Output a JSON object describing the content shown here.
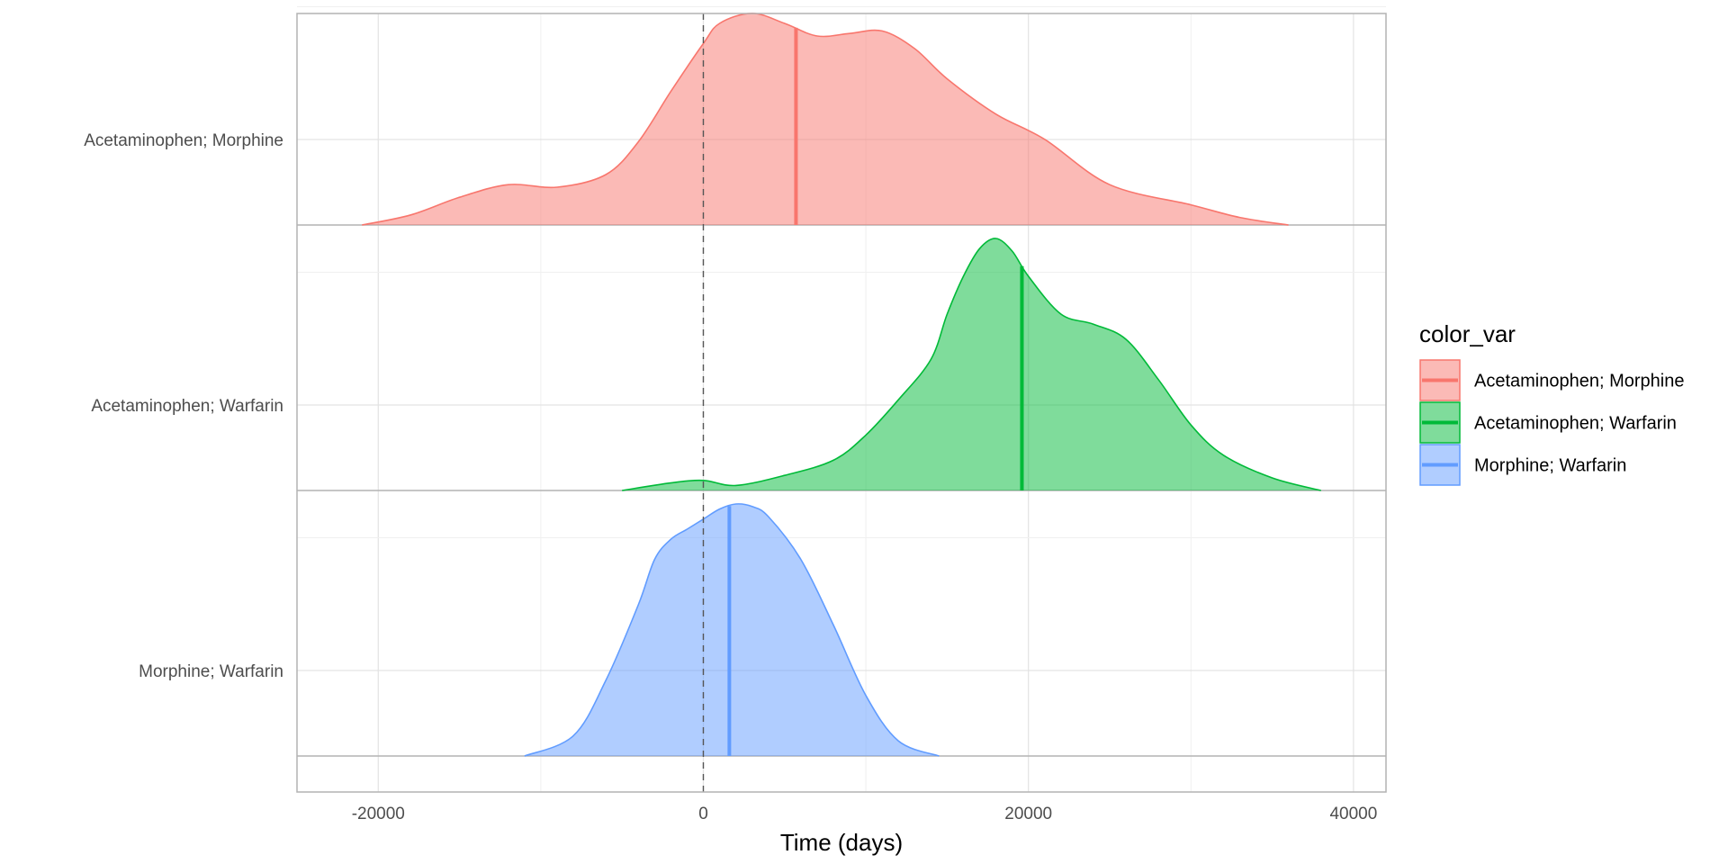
{
  "chart_data": {
    "type": "area",
    "xlabel": "Time (days)",
    "ylabel": "",
    "xlim": [
      -25000,
      42000
    ],
    "x_ticks": [
      -20000,
      0,
      20000,
      40000
    ],
    "x_tick_labels": [
      "-20000",
      "0",
      "20000",
      "40000"
    ],
    "reference_line_x": 0,
    "grid": true,
    "legend": {
      "title": "color_var",
      "position": "right"
    },
    "series": [
      {
        "name": "Acetaminophen; Morphine",
        "color": "#F8766D",
        "median": 5700,
        "density": {
          "x": [
            -21000,
            -18000,
            -15000,
            -12000,
            -9000,
            -6000,
            -4000,
            -2000,
            0,
            1000,
            3000,
            5000,
            7000,
            9000,
            11000,
            13000,
            15000,
            18000,
            21000,
            25000,
            30000,
            33000,
            36000
          ],
          "y": [
            0.0,
            0.04,
            0.11,
            0.16,
            0.15,
            0.2,
            0.33,
            0.53,
            0.72,
            0.8,
            0.84,
            0.8,
            0.75,
            0.76,
            0.77,
            0.7,
            0.58,
            0.44,
            0.34,
            0.16,
            0.08,
            0.03,
            0.0
          ]
        }
      },
      {
        "name": "Acetaminophen; Warfarin",
        "color": "#00BA38",
        "median": 19600,
        "density": {
          "x": [
            -5000,
            -2000,
            0,
            2000,
            5000,
            8000,
            10000,
            12000,
            14000,
            15000,
            16000,
            17000,
            18000,
            19000,
            20000,
            22000,
            24000,
            26000,
            28000,
            30000,
            32000,
            35000,
            38000
          ],
          "y": [
            0.0,
            0.03,
            0.04,
            0.02,
            0.06,
            0.12,
            0.22,
            0.36,
            0.52,
            0.7,
            0.85,
            0.96,
            1.0,
            0.95,
            0.85,
            0.7,
            0.66,
            0.6,
            0.44,
            0.26,
            0.14,
            0.05,
            0.0
          ]
        }
      },
      {
        "name": "Morphine; Warfarin",
        "color": "#619CFF",
        "median": 1600,
        "density": {
          "x": [
            -11000,
            -8000,
            -6000,
            -4000,
            -3000,
            -2000,
            -1000,
            0,
            1000,
            2000,
            3000,
            4000,
            6000,
            8000,
            10000,
            12000,
            14500
          ],
          "y": [
            0.0,
            0.08,
            0.3,
            0.6,
            0.78,
            0.86,
            0.9,
            0.94,
            0.98,
            1.0,
            0.99,
            0.95,
            0.78,
            0.52,
            0.24,
            0.06,
            0.0
          ]
        }
      }
    ],
    "categories": [
      "Acetaminophen; Morphine",
      "Acetaminophen; Warfarin",
      "Morphine; Warfarin"
    ]
  }
}
